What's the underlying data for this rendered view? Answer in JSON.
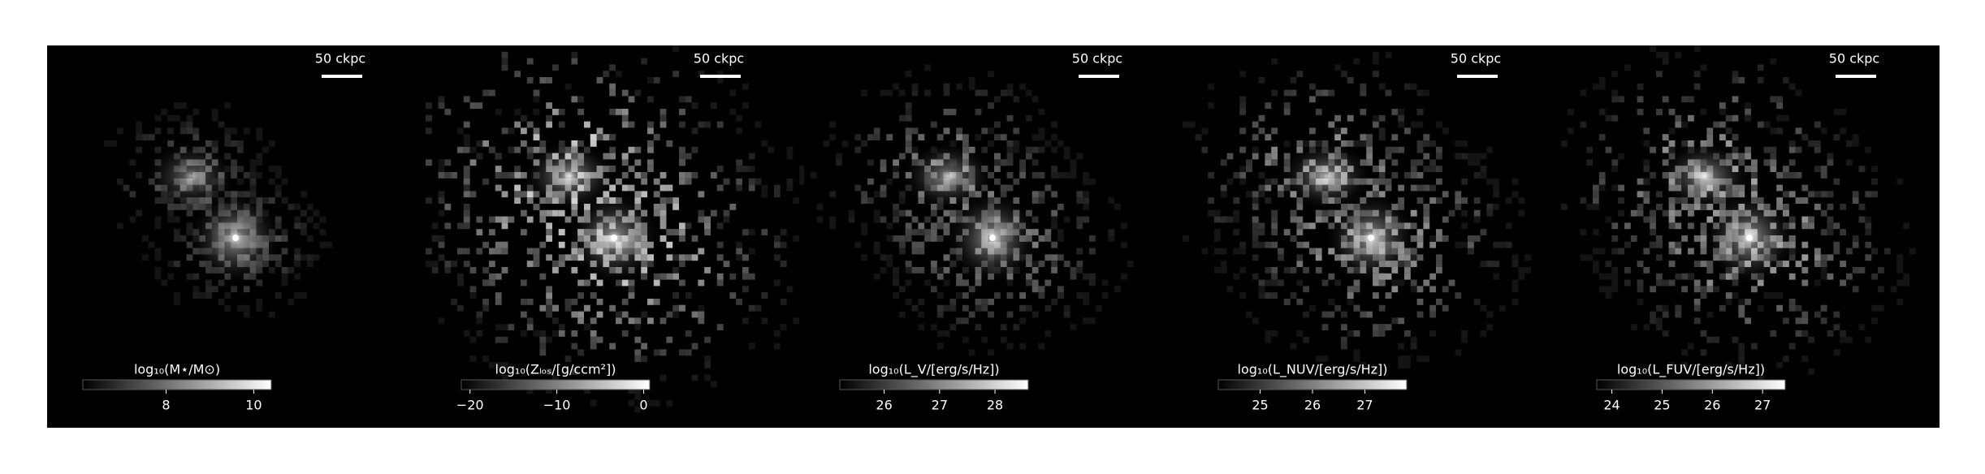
{
  "chart_data": [
    {
      "type": "image",
      "scale_label": "50 ckpc",
      "colorbar_label": "log₁₀(M⋆/M⊙)",
      "cmap": [
        "#000000",
        "#ffffff"
      ],
      "clim": [
        6.1,
        10.4
      ],
      "cticks": [
        8,
        10
      ]
    },
    {
      "type": "image",
      "scale_label": "50 ckpc",
      "colorbar_label": "log₁₀(Zₗₒₛ/[g/ccm²])",
      "cmap": [
        "#000000",
        "#ffffff"
      ],
      "clim": [
        -21,
        0.7
      ],
      "cticks": [
        {
          "value": -20,
          "label": "−20"
        },
        {
          "value": -10,
          "label": "−10"
        },
        0
      ]
    },
    {
      "type": "image",
      "scale_label": "50 ckpc",
      "colorbar_label": "log₁₀(L_V/[erg/s/Hz])",
      "cmap": [
        "#000000",
        "#ffffff"
      ],
      "clim": [
        25.2,
        28.6
      ],
      "cticks": [
        26,
        27,
        28
      ]
    },
    {
      "type": "image",
      "scale_label": "50 ckpc",
      "colorbar_label": "log₁₀(L_NUV/[erg/s/Hz])",
      "cmap": [
        "#000000",
        "#ffffff"
      ],
      "clim": [
        24.2,
        27.8
      ],
      "cticks": [
        25,
        26,
        27
      ]
    },
    {
      "type": "image",
      "scale_label": "50 ckpc",
      "colorbar_label": "log₁₀(L_FUV/[erg/s/Hz])",
      "cmap": [
        "#000000",
        "#ffffff"
      ],
      "clim": [
        23.7,
        27.45
      ],
      "cticks": [
        24,
        25,
        26,
        27
      ]
    }
  ]
}
